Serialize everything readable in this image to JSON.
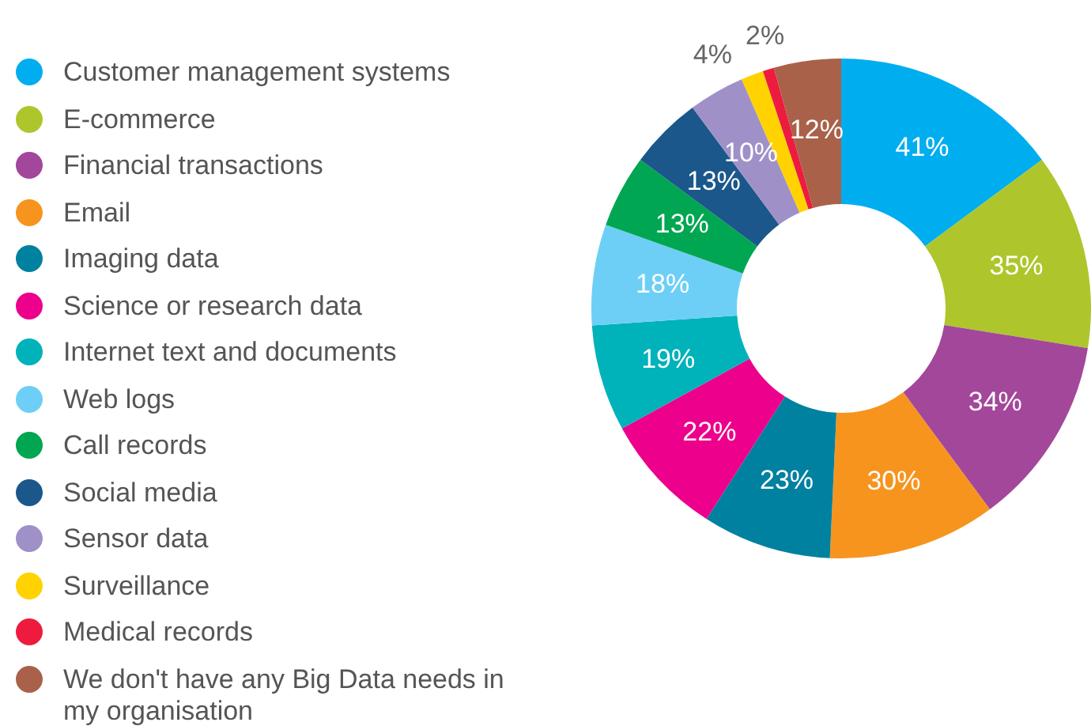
{
  "chart_data": {
    "type": "donut",
    "categories": [
      "Customer management systems",
      "E-commerce",
      "Financial transactions",
      "Email",
      "Imaging data",
      "Science or research data",
      "Internet text and documents",
      "Web logs",
      "Call records",
      "Social media",
      "Sensor data",
      "Surveillance",
      "Medical records",
      "We don't have any Big Data needs in my organisation"
    ],
    "values": [
      41,
      35,
      34,
      30,
      23,
      22,
      19,
      18,
      13,
      13,
      10,
      4,
      2,
      12
    ],
    "value_labels": [
      "41%",
      "35%",
      "34%",
      "30%",
      "23%",
      "22%",
      "19%",
      "18%",
      "13%",
      "13%",
      "10%",
      "4%",
      "2%",
      "12%"
    ],
    "colors": [
      "#00aeef",
      "#aec62c",
      "#a3479b",
      "#f7941d",
      "#00819f",
      "#ec008c",
      "#00b2b9",
      "#6dcff6",
      "#00a651",
      "#1b578a",
      "#9f91c8",
      "#ffd200",
      "#ed1c3e",
      "#a9614a"
    ],
    "legend": "left"
  }
}
